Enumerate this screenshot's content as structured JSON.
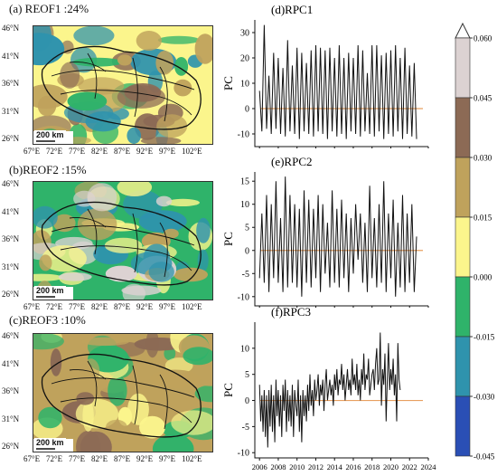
{
  "colors": {
    "dark_blue": "#2a4fb5",
    "teal_blue": "#2f93ad",
    "green": "#2fb36a",
    "light_yellow": "#fbf58c",
    "khaki": "#bfa25c",
    "brown": "#8c6a55",
    "light_gray": "#dcd2d2",
    "line": "#111111",
    "zero_line": "#e8a060"
  },
  "maps": [
    {
      "title": "(a)  REOF1 :24%",
      "scale_label": "200 km"
    },
    {
      "title": "(b)REOF2 :15%",
      "scale_label": "200 km"
    },
    {
      "title": "(c)REOF3 :10%",
      "scale_label": "200 km"
    }
  ],
  "map_axes": {
    "lat_labels": [
      "46°N",
      "41°N",
      "36°N",
      "31°N",
      "26°N"
    ],
    "lon_labels": [
      "67°E",
      "72°E",
      "77°E",
      "82°E",
      "87°E",
      "92°E",
      "97°E",
      "102°E"
    ]
  },
  "colorbar": {
    "tick_labels": [
      "0.060",
      "0.045",
      "0.030",
      "0.015",
      "0.000",
      "-0.015",
      "-0.030",
      "-0.045"
    ]
  },
  "chart_data": [
    {
      "type": "line",
      "title": "(d)RPC1",
      "ylabel": "PC",
      "ylim": [
        -15,
        35
      ],
      "yticks": [
        30,
        20,
        10,
        0,
        -10
      ],
      "x_start": 2006.0,
      "x_step": 0.25,
      "values": [
        7,
        -9,
        33,
        -8,
        13,
        -10,
        22,
        -8,
        20,
        -10,
        16,
        -11,
        27,
        -9,
        17,
        -10,
        24,
        -12,
        22,
        -9,
        18,
        -10,
        23,
        -11,
        25,
        -9,
        24,
        -10,
        23,
        -12,
        24,
        -9,
        20,
        -11,
        25,
        -10,
        20,
        -12,
        22,
        -9,
        20,
        -10,
        25,
        -11,
        23,
        -9,
        14,
        -10,
        25,
        -11,
        25,
        -9,
        21,
        -12,
        22,
        -10,
        23,
        -11,
        25,
        -9,
        20,
        -12,
        24,
        -10,
        17,
        -11,
        18,
        -12
      ]
    },
    {
      "type": "line",
      "title": "(e)RPC2",
      "ylabel": "PC",
      "ylim": [
        -12,
        17
      ],
      "yticks": [
        15,
        10,
        5,
        0,
        -5,
        -10
      ],
      "x_start": 2006.0,
      "x_step": 0.25,
      "values": [
        -6,
        8,
        -7,
        12,
        -9,
        10,
        -6,
        15,
        -7,
        7,
        -9,
        16,
        -8,
        12,
        -7,
        10,
        -8,
        9,
        -10,
        13,
        -7,
        11,
        -8,
        9,
        -6,
        12,
        -9,
        10,
        -5,
        6,
        -8,
        13,
        -7,
        9,
        -8,
        11,
        -6,
        8,
        -9,
        7,
        -5,
        10,
        -2,
        8,
        -7,
        6,
        -9,
        14,
        -6,
        7,
        -8,
        10,
        -7,
        15,
        -9,
        8,
        -6,
        11,
        -10,
        6,
        -8,
        12,
        -9,
        8,
        -7,
        10,
        -9,
        3
      ]
    },
    {
      "type": "line",
      "title": "(f)RPC3",
      "ylabel": "PC",
      "ylim": [
        -11,
        15
      ],
      "yticks": [
        10,
        5,
        0,
        -5,
        -10
      ],
      "xticks": [
        "2006",
        "2008",
        "2010",
        "2012",
        "2014",
        "2016",
        "2018",
        "2020",
        "2022",
        "2024"
      ],
      "xlim": [
        2005.5,
        2024
      ],
      "x_start": 2006.0,
      "x_step": 0.125,
      "values": [
        3,
        -4,
        1,
        -6,
        2,
        -7,
        1,
        -9,
        2,
        -5,
        3,
        -6,
        1,
        -8,
        4,
        -3,
        2,
        -5,
        1,
        -7,
        3,
        -2,
        4,
        -6,
        2,
        -4,
        1,
        -5,
        3,
        -7,
        2,
        -1,
        -3,
        4,
        -6,
        1,
        -8,
        2,
        -3,
        1,
        -4,
        3,
        -2,
        5,
        -1,
        2,
        -3,
        4,
        0,
        2,
        5,
        -1,
        3,
        1,
        4,
        -2,
        3,
        6,
        0,
        2,
        4,
        1,
        3,
        -1,
        5,
        2,
        6,
        1,
        4,
        3,
        7,
        2,
        5,
        0,
        3,
        6,
        2,
        4,
        1,
        8,
        3,
        5,
        2,
        7,
        1,
        4,
        0,
        6,
        3,
        9,
        2,
        5,
        4,
        8,
        1,
        3,
        5,
        6,
        2,
        7,
        10,
        3,
        4,
        13,
        -1,
        6,
        3,
        9,
        -4,
        4,
        11,
        2,
        6,
        3,
        8,
        1,
        5,
        -4,
        11,
        4,
        2
      ]
    }
  ]
}
